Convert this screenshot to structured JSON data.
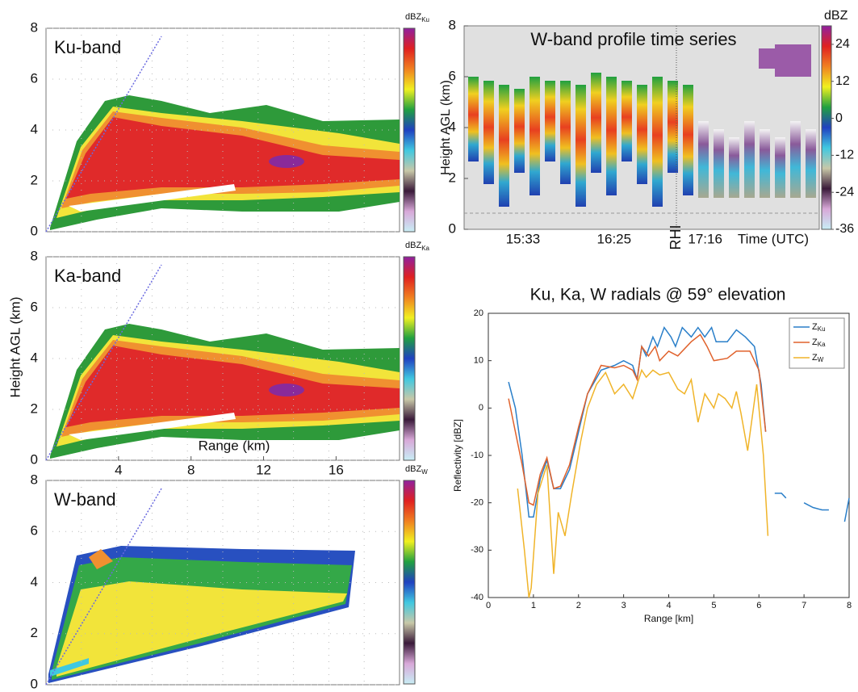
{
  "chart_data": [
    {
      "type": "rhi",
      "label": "Ku-band",
      "colorbar_label": "dBZ",
      "colorbar_label_sub": "Ku",
      "ylim": [
        0,
        8
      ],
      "yticks": [
        0,
        2,
        4,
        6,
        8
      ]
    },
    {
      "type": "rhi",
      "label": "Ka-band",
      "colorbar_label": "dBZ",
      "colorbar_label_sub": "Ka",
      "ylim": [
        0,
        8
      ],
      "yticks": [
        0,
        2,
        4,
        6,
        8
      ],
      "xlim": [
        0,
        19.5
      ],
      "xticks": [
        4,
        8,
        12,
        16
      ],
      "xlabel": "Range (km)",
      "ylabel": "Height AGL (km)"
    },
    {
      "type": "rhi",
      "label": "W-band",
      "colorbar_label": "dBZ",
      "colorbar_label_sub": "W",
      "ylim": [
        0,
        8
      ],
      "yticks": [
        0,
        2,
        4,
        6,
        8
      ]
    },
    {
      "type": "profile",
      "title": "W-band profile time series",
      "ylabel": "Height AGL (km)",
      "ylim": [
        0,
        8
      ],
      "yticks": [
        0,
        2,
        4,
        6,
        8
      ],
      "categories": [
        "15:33",
        "16:25",
        "17:16"
      ],
      "xlabel": "Time (UTC)",
      "annotation": "RHI",
      "colorbar_label": "dBZ",
      "clim": [
        -36,
        30
      ],
      "cticks": [
        24,
        12,
        0,
        -12,
        -24,
        -36
      ]
    },
    {
      "type": "line",
      "title": "Ku, Ka, W radials @ 59° elevation",
      "xlabel": "Range [km]",
      "ylabel": "Reflectivity [dBZ]",
      "xlim": [
        0,
        8
      ],
      "xticks": [
        0,
        1,
        2,
        3,
        4,
        5,
        6,
        7,
        8
      ],
      "ylim": [
        -40,
        20
      ],
      "yticks": [
        -40,
        -30,
        -20,
        -10,
        0,
        10,
        20
      ],
      "series": [
        {
          "name": "Z",
          "subscript": "Ku",
          "color": "#2a7fc9",
          "x": [
            0.45,
            0.6,
            0.75,
            0.9,
            1.0,
            1.15,
            1.3,
            1.45,
            1.6,
            1.8,
            2.0,
            2.2,
            2.5,
            2.8,
            3.0,
            3.2,
            3.3,
            3.4,
            3.5,
            3.65,
            3.75,
            3.9,
            4.05,
            4.15,
            4.3,
            4.5,
            4.65,
            4.8,
            4.95,
            5.05,
            5.3,
            5.5,
            5.7,
            5.9,
            6.05,
            6.15,
            null,
            6.35,
            6.5,
            6.6,
            null,
            7.0,
            7.2,
            7.4,
            7.55,
            null,
            7.9,
            8.0
          ],
          "values": [
            5.5,
            0,
            -10,
            -23,
            -23,
            -15,
            -11,
            -17,
            -17,
            -13,
            -5,
            3,
            8,
            9,
            10,
            9,
            6,
            13,
            11,
            15,
            13,
            17,
            15,
            13,
            17,
            15,
            17,
            15,
            17,
            14,
            14,
            16.5,
            15,
            13,
            5,
            -5,
            null,
            -18,
            -18,
            -19,
            null,
            -20,
            -21,
            -21.5,
            -21.5,
            null,
            -24,
            -19
          ]
        },
        {
          "name": "Z",
          "subscript": "Ka",
          "color": "#e0622c",
          "x": [
            0.45,
            0.6,
            0.75,
            0.9,
            1.0,
            1.15,
            1.3,
            1.45,
            1.6,
            1.8,
            2.0,
            2.2,
            2.5,
            2.8,
            3.0,
            3.2,
            3.3,
            3.4,
            3.55,
            3.7,
            3.8,
            4.0,
            4.2,
            4.5,
            4.7,
            4.85,
            5.0,
            5.3,
            5.5,
            5.8,
            6.0,
            6.15
          ],
          "values": [
            2,
            -5,
            -12,
            -20,
            -20.5,
            -14,
            -10.5,
            -17,
            -16.5,
            -12,
            -4,
            3,
            9,
            8.5,
            9,
            8,
            6,
            13,
            11,
            13,
            10,
            12,
            11,
            14,
            15.5,
            13,
            10,
            10.5,
            12,
            12,
            8,
            -5
          ]
        },
        {
          "name": "Z",
          "subscript": "W",
          "color": "#f0b429",
          "x": [
            0.65,
            0.8,
            0.9,
            0.95,
            1.1,
            1.3,
            1.45,
            1.55,
            1.7,
            1.85,
            2.05,
            2.2,
            2.4,
            2.6,
            2.8,
            3.0,
            3.2,
            3.4,
            3.5,
            3.65,
            3.8,
            4.0,
            4.2,
            4.35,
            4.5,
            4.65,
            4.8,
            5.0,
            5.1,
            5.25,
            5.4,
            5.5,
            5.6,
            5.75,
            5.95,
            6.1,
            6.2
          ],
          "values": [
            -17,
            -30,
            -40,
            -38,
            -18,
            -12,
            -35,
            -22,
            -27,
            -18,
            -7,
            0,
            5,
            7.5,
            3,
            5,
            2,
            8,
            6.5,
            8,
            7,
            7.5,
            4,
            3,
            6,
            -3,
            3,
            0,
            3,
            2,
            0,
            3.5,
            -1,
            -9,
            5,
            -10,
            -27
          ]
        }
      ]
    }
  ]
}
